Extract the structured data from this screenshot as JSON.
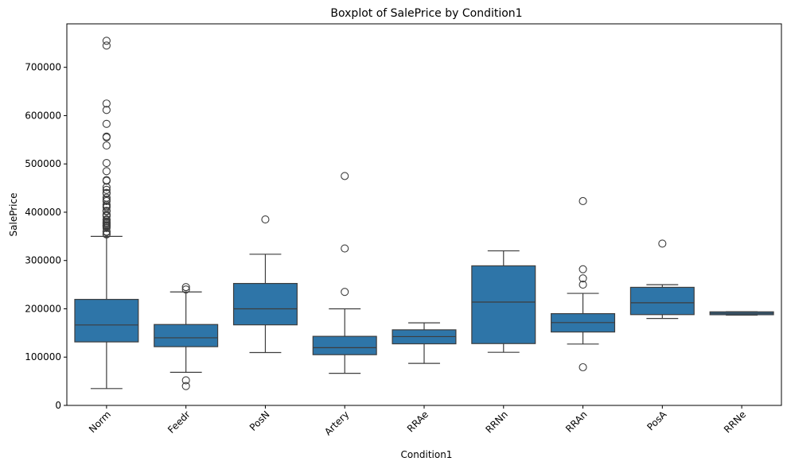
{
  "chart_data": {
    "type": "boxplot",
    "title": "Boxplot of SalePrice by Condition1",
    "xlabel": "Condition1",
    "ylabel": "SalePrice",
    "ylim": [
      0,
      790000
    ],
    "yticks": [
      0,
      100000,
      200000,
      300000,
      400000,
      500000,
      600000,
      700000
    ],
    "categories": [
      "Norm",
      "Feedr",
      "PosN",
      "Artery",
      "RRAe",
      "RRNn",
      "RRAn",
      "PosA",
      "RRNe"
    ],
    "box_color": "#2e75a8",
    "line_color": "#3d3d3d",
    "boxes": [
      {
        "category": "Norm",
        "whisker_low": 34900,
        "q1": 131500,
        "median": 166500,
        "q3": 219500,
        "whisker_high": 350000,
        "outliers": [
          755000,
          745000,
          625000,
          611657,
          582933,
          556581,
          555000,
          538000,
          501837,
          485000,
          466500,
          465000,
          451950,
          446261,
          440000,
          438780,
          430000,
          426000,
          423000,
          415298,
          412500,
          410000,
          402861,
          402000,
          395000,
          394617,
          392500,
          392000,
          385000,
          383970,
          381000,
          378500,
          377500,
          377426,
          375000,
          372500,
          372402,
          370878,
          369900,
          367294,
          360000,
          359100,
          355000,
          354000
        ]
      },
      {
        "category": "Feedr",
        "whisker_low": 68500,
        "q1": 121600,
        "median": 140000,
        "q3": 167500,
        "whisker_high": 235000,
        "outliers": [
          245000,
          240000,
          52000,
          40000
        ]
      },
      {
        "category": "PosN",
        "whisker_low": 109500,
        "q1": 166800,
        "median": 200000,
        "q3": 252500,
        "whisker_high": 313000,
        "outliers": [
          385000
        ]
      },
      {
        "category": "Artery",
        "whisker_low": 66500,
        "q1": 105000,
        "median": 119550,
        "q3": 143000,
        "whisker_high": 200000,
        "outliers": [
          475000,
          325000,
          235000
        ]
      },
      {
        "category": "RRAe",
        "whisker_low": 87000,
        "q1": 127500,
        "median": 142500,
        "q3": 156500,
        "whisker_high": 171000,
        "outliers": []
      },
      {
        "category": "RRNn",
        "whisker_low": 110000,
        "q1": 128000,
        "median": 214000,
        "q3": 289000,
        "whisker_high": 320000,
        "outliers": []
      },
      {
        "category": "RRAn",
        "whisker_low": 127000,
        "q1": 152000,
        "median": 171495,
        "q3": 190000,
        "whisker_high": 232000,
        "outliers": [
          423000,
          282000,
          263000,
          250000,
          79000
        ]
      },
      {
        "category": "PosA",
        "whisker_low": 180000,
        "q1": 188000,
        "median": 212500,
        "q3": 244500,
        "whisker_high": 250000,
        "outliers": [
          335000
        ]
      },
      {
        "category": "RRNe",
        "whisker_low": 187000,
        "q1": 187750,
        "median": 190750,
        "q3": 193750,
        "whisker_high": 194000,
        "outliers": []
      }
    ]
  }
}
